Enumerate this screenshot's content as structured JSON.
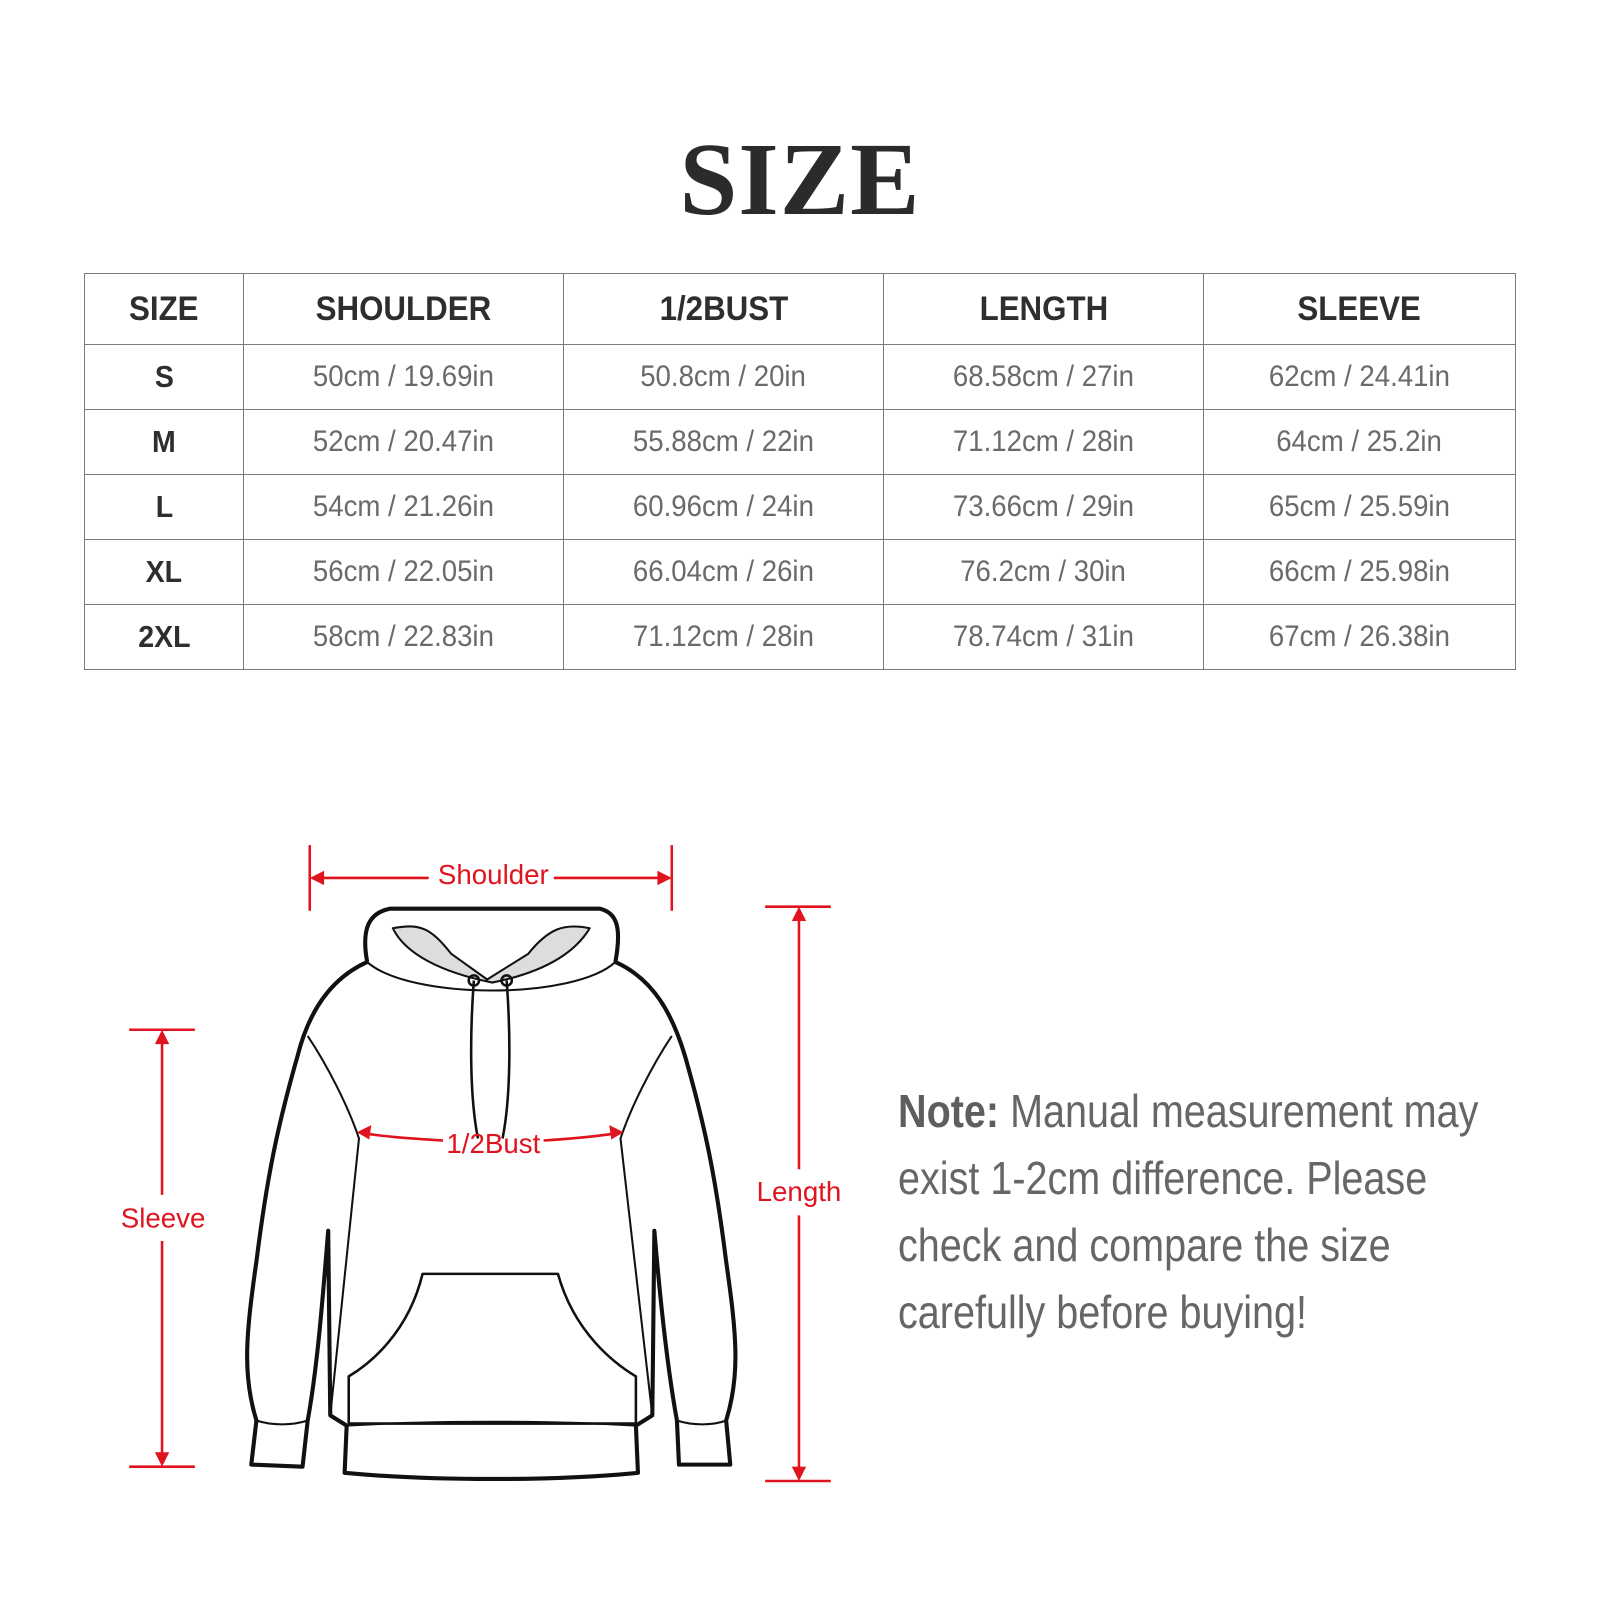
{
  "title": "SIZE",
  "table": {
    "headers": [
      "SIZE",
      "SHOULDER",
      "1/2BUST",
      "LENGTH",
      "SLEEVE"
    ],
    "rows": [
      [
        "S",
        "50cm / 19.69in",
        "50.8cm / 20in",
        "68.58cm / 27in",
        "62cm / 24.41in"
      ],
      [
        "M",
        "52cm / 20.47in",
        "55.88cm / 22in",
        "71.12cm / 28in",
        "64cm / 25.2in"
      ],
      [
        "L",
        "54cm / 21.26in",
        "60.96cm / 24in",
        "73.66cm / 29in",
        "65cm / 25.59in"
      ],
      [
        "XL",
        "56cm / 22.05in",
        "66.04cm / 26in",
        "76.2cm / 30in",
        "66cm / 25.98in"
      ],
      [
        "2XL",
        "58cm / 22.83in",
        "71.12cm / 28in",
        "78.74cm / 31in",
        "67cm / 26.38in"
      ]
    ]
  },
  "diagram": {
    "labels": {
      "shoulder": "Shoulder",
      "bust": "1/2Bust",
      "sleeve": "Sleeve",
      "length": "Length"
    },
    "accent_color": "#e0141e"
  },
  "note": {
    "label": "Note:",
    "lines": [
      "Manual measurement may",
      "exist 1-2cm difference. Please",
      "check and compare the size",
      "carefully before buying!"
    ]
  }
}
